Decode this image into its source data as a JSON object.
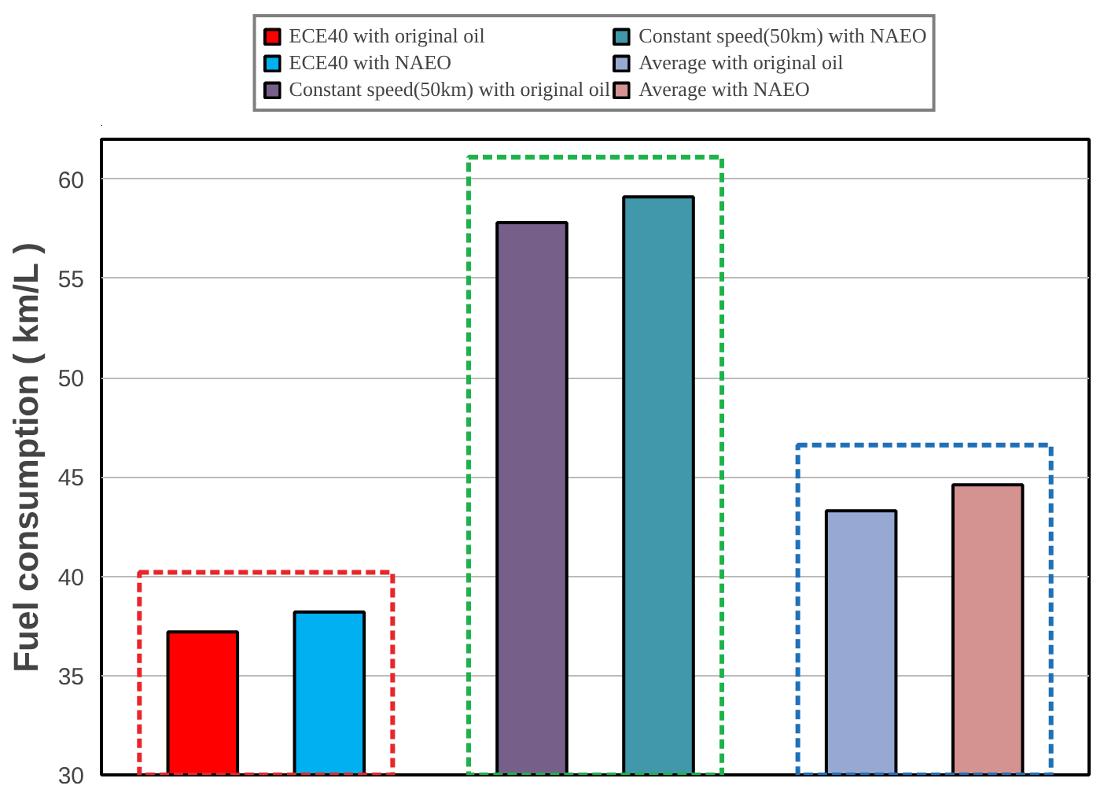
{
  "chart_data": {
    "type": "bar",
    "ylabel": "Fuel consumption ( km/L )",
    "categories": [
      null,
      null,
      null,
      null,
      null,
      null
    ],
    "series": [
      {
        "name": "ECE40 with original oil",
        "color": "#ff0000",
        "values": [
          37.2,
          null,
          null,
          null,
          null,
          null
        ]
      },
      {
        "name": "ECE40 with NAEO",
        "color": "#00b0f0",
        "values": [
          null,
          38.2,
          null,
          null,
          null,
          null
        ]
      },
      {
        "name": "Constant speed(50km) with original oil",
        "color": "#76608a",
        "values": [
          null,
          null,
          57.8,
          null,
          null,
          null
        ]
      },
      {
        "name": "Constant speed(50km) with NAEO",
        "color": "#4198aa",
        "values": [
          null,
          null,
          null,
          59.1,
          null,
          null
        ]
      },
      {
        "name": "Average with original oil",
        "color": "#97a9d3",
        "values": [
          null,
          null,
          null,
          null,
          43.3,
          null
        ]
      },
      {
        "name": "Average with NAEO",
        "color": "#d49290",
        "values": [
          null,
          null,
          null,
          null,
          null,
          44.6
        ]
      }
    ],
    "ylim": [
      30,
      62
    ],
    "yticks": [
      30,
      35,
      40,
      45,
      50,
      55,
      60
    ],
    "grid": "y",
    "legend": "top"
  }
}
